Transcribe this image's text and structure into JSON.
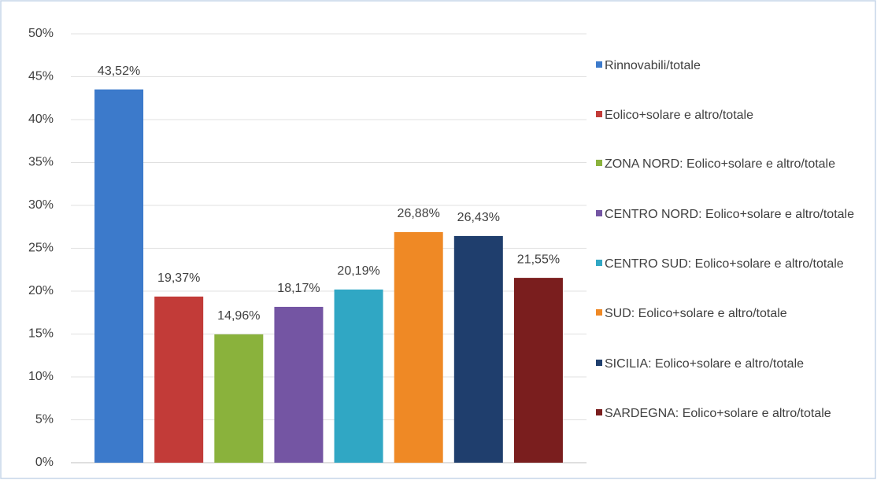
{
  "chart_data": {
    "type": "bar",
    "ylim": [
      0,
      50
    ],
    "yticks": [
      {
        "value": 0,
        "label": "0%"
      },
      {
        "value": 5,
        "label": "5%"
      },
      {
        "value": 10,
        "label": "10%"
      },
      {
        "value": 15,
        "label": "15%"
      },
      {
        "value": 20,
        "label": "20%"
      },
      {
        "value": 25,
        "label": "25%"
      },
      {
        "value": 30,
        "label": "30%"
      },
      {
        "value": 35,
        "label": "35%"
      },
      {
        "value": 40,
        "label": "40%"
      },
      {
        "value": 45,
        "label": "45%"
      },
      {
        "value": 50,
        "label": "50%"
      }
    ],
    "grid": true,
    "legend": "right",
    "series": [
      {
        "name": "Rinnovabili/totale",
        "color": "#3c7acb",
        "values": [
          43.52
        ],
        "value_labels": [
          "43,52%"
        ]
      },
      {
        "name": "Eolico+solare e altro/totale",
        "color": "#c23b38",
        "values": [
          19.37
        ],
        "value_labels": [
          "19,37%"
        ]
      },
      {
        "name": "ZONA NORD: Eolico+solare e altro/totale",
        "color": "#8ab23c",
        "values": [
          14.96
        ],
        "value_labels": [
          "14,96%"
        ]
      },
      {
        "name": "CENTRO NORD: Eolico+solare e altro/totale",
        "color": "#7455a3",
        "values": [
          18.17
        ],
        "value_labels": [
          "18,17%"
        ]
      },
      {
        "name": "CENTRO SUD: Eolico+solare e altro/totale",
        "color": "#30a7c4",
        "values": [
          20.19
        ],
        "value_labels": [
          "20,19%"
        ]
      },
      {
        "name": "SUD: Eolico+solare e altro/totale",
        "color": "#ef8925",
        "values": [
          26.88
        ],
        "value_labels": [
          "26,88%"
        ]
      },
      {
        "name": "SICILIA: Eolico+solare e altro/totale",
        "color": "#1f3e6d",
        "values": [
          26.43
        ],
        "value_labels": [
          "26,43%"
        ]
      },
      {
        "name": "SARDEGNA: Eolico+solare e altro/totale",
        "color": "#7a1e1e",
        "values": [
          21.55
        ],
        "value_labels": [
          "21,55%"
        ]
      }
    ]
  }
}
